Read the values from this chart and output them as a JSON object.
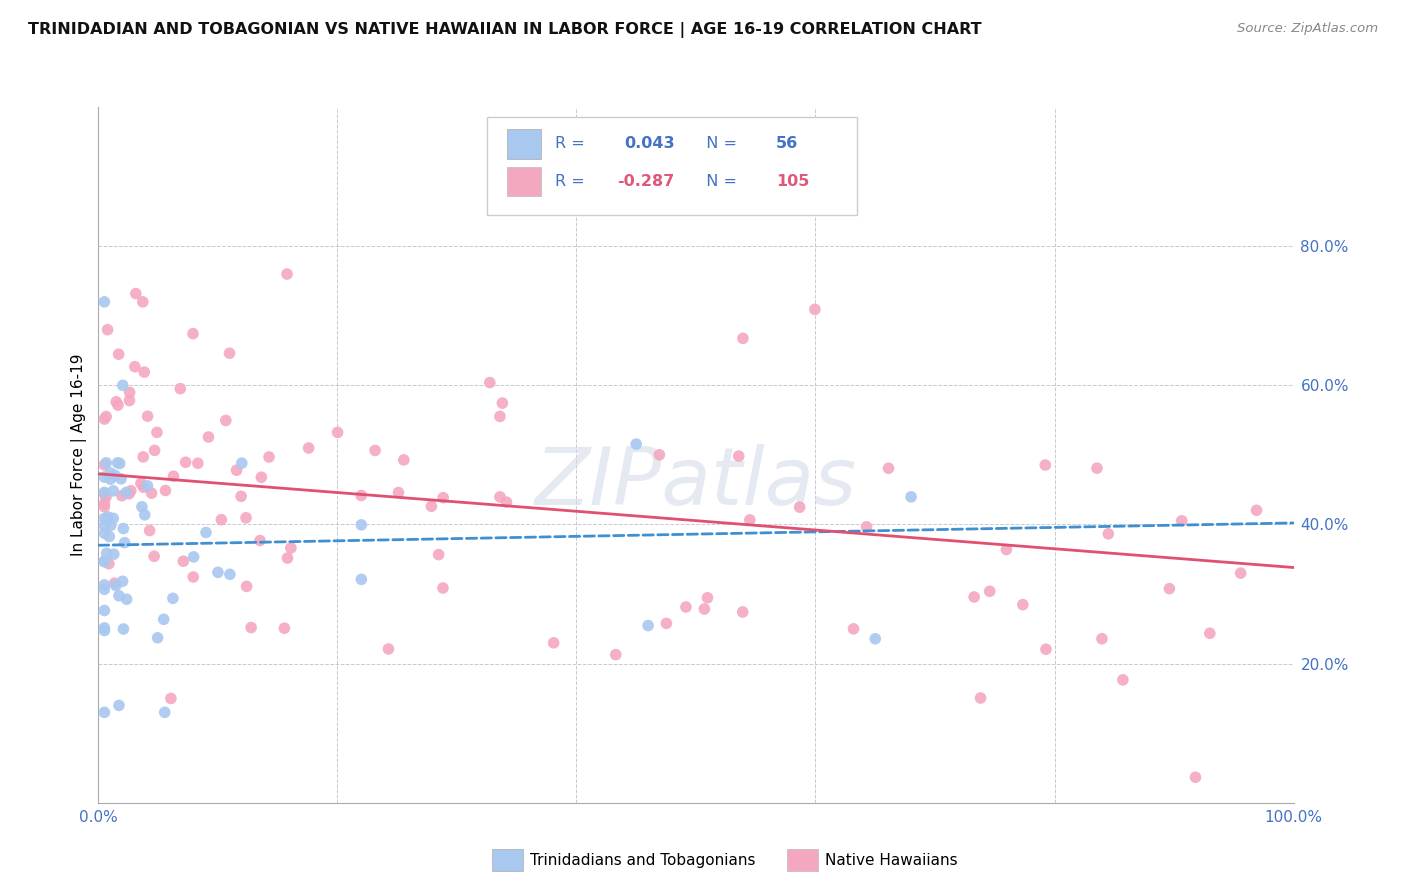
{
  "title": "TRINIDADIAN AND TOBAGONIAN VS NATIVE HAWAIIAN IN LABOR FORCE | AGE 16-19 CORRELATION CHART",
  "source": "Source: ZipAtlas.com",
  "ylabel": "In Labor Force | Age 16-19",
  "xlim": [
    0,
    1.0
  ],
  "ylim": [
    0,
    1.0
  ],
  "blue_color": "#A8C8F0",
  "pink_color": "#F4A8C0",
  "blue_line_color": "#4090D0",
  "pink_line_color": "#E05070",
  "watermark": "ZIPatlas",
  "legend_label_blue": "Trinidadians and Tobagonians",
  "legend_label_pink": "Native Hawaiians",
  "r_blue": "0.043",
  "n_blue": "56",
  "r_pink": "-0.287",
  "n_pink": "105",
  "text_blue": "#4472C4",
  "text_pink": "#E05878",
  "blue_r_display": "R =  0.043",
  "blue_n_display": "N =  56",
  "pink_r_display": "R = -0.287",
  "pink_n_display": "N = 105"
}
